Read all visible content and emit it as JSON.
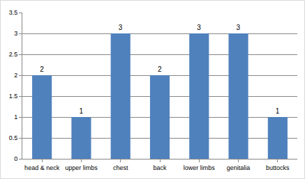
{
  "chart_data": {
    "type": "bar",
    "categories": [
      "head & neck",
      "upper limbs",
      "chest",
      "back",
      "lower limbs",
      "genitalia",
      "buttocks"
    ],
    "values": [
      2,
      1,
      3,
      2,
      3,
      3,
      1
    ],
    "color": "#4f81bd",
    "ylim": [
      0,
      3.5
    ],
    "yticks": [
      0,
      0.5,
      1,
      1.5,
      2,
      2.5,
      3,
      3.5
    ],
    "grid": true,
    "data_labels": true
  }
}
